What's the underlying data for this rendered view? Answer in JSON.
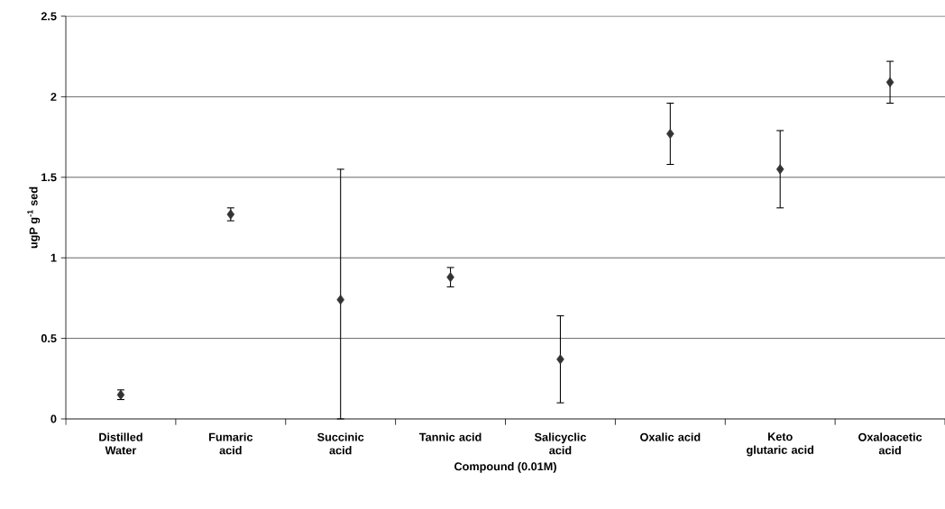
{
  "chart_data": {
    "type": "scatter",
    "xlabel": "Compound (0.01M)",
    "ylabel": "ugP g$^{-1}$ sed",
    "categories": [
      "Distilled Water",
      "Fumaric acid",
      "Succinic acid",
      "Tannic acid",
      "Salicyclic acid",
      "Oxalic acid",
      "Keto glutaric acid",
      "Oxaloacetic acid"
    ],
    "values": [
      0.15,
      1.27,
      0.74,
      0.88,
      0.37,
      1.77,
      1.55,
      2.09
    ],
    "errors": [
      0.03,
      0.04,
      [
        0,
        1.55
      ],
      0.06,
      0.27,
      0.19,
      0.24,
      0.13
    ],
    "color": "#333333",
    "marker": "diamond",
    "ylim": [
      0,
      2.5
    ],
    "yticks": [
      0,
      0.5,
      1,
      1.5,
      2,
      2.5
    ],
    "grid": "y"
  }
}
